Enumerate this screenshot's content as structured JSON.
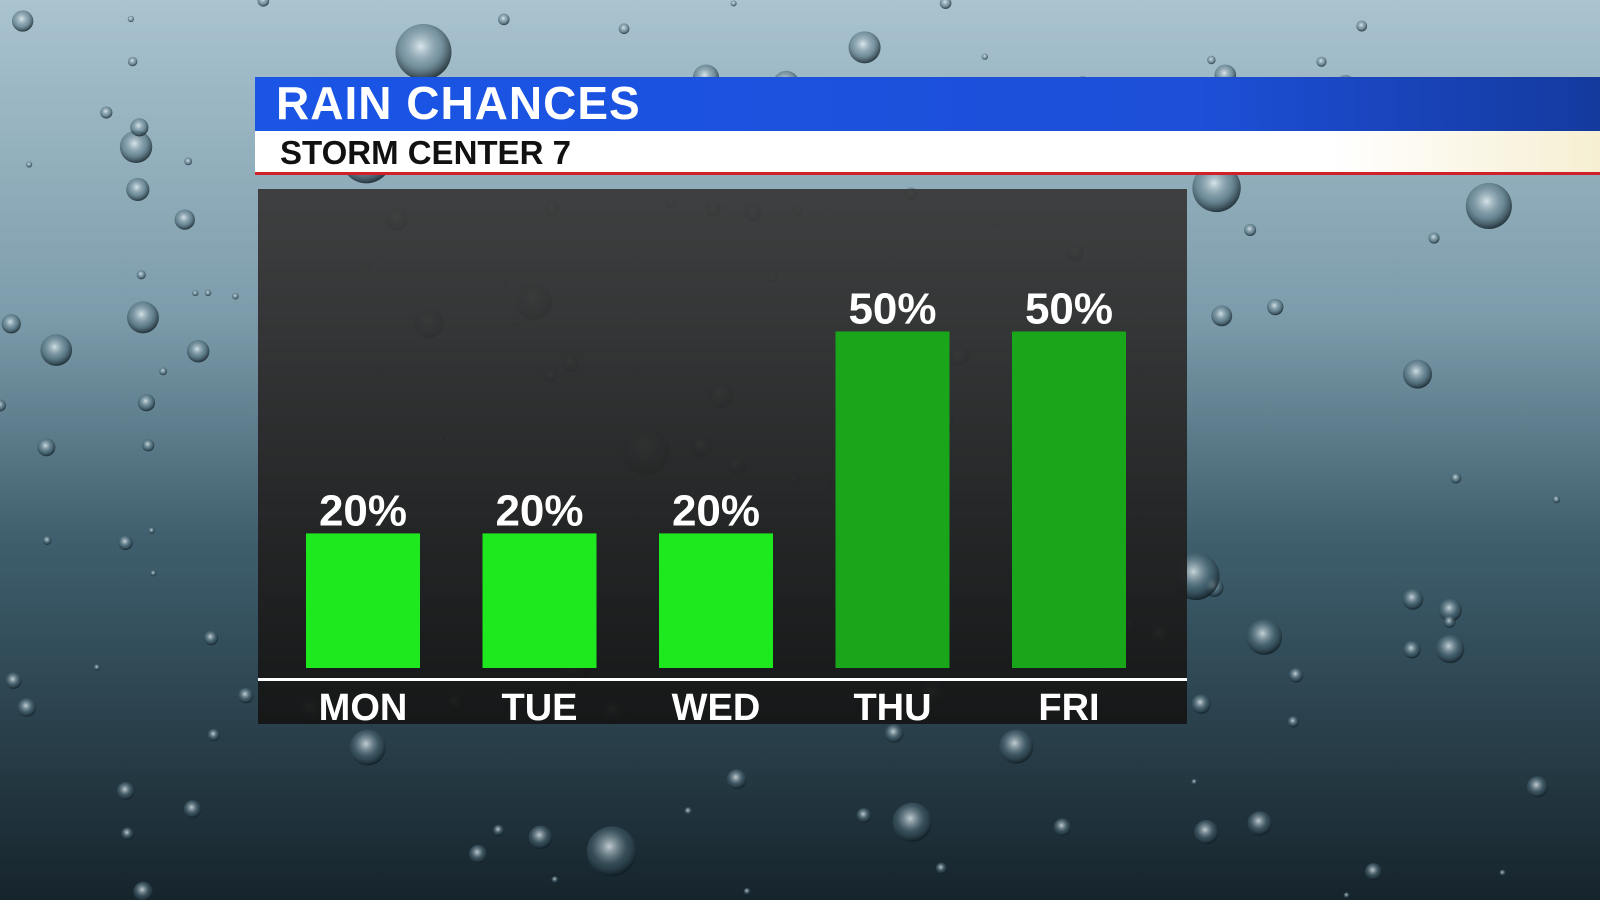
{
  "chart_data": {
    "type": "bar",
    "title": "RAIN CHANCES",
    "subtitle": "STORM CENTER 7",
    "categories": [
      "MON",
      "TUE",
      "WED",
      "THU",
      "FRI"
    ],
    "values": [
      20,
      20,
      20,
      50,
      50
    ],
    "value_labels": [
      "20%",
      "20%",
      "20%",
      "50%",
      "50%"
    ],
    "colors": [
      "#1ee81e",
      "#1ee81e",
      "#1ee81e",
      "#1aa61a",
      "#1aa61a"
    ]
  }
}
